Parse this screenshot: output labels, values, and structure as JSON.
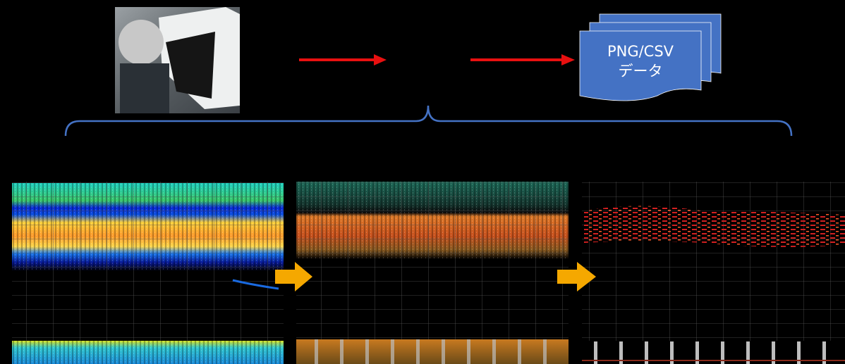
{
  "document": {
    "label_line1": "PNG/CSV",
    "label_line2": "データ"
  }
}
